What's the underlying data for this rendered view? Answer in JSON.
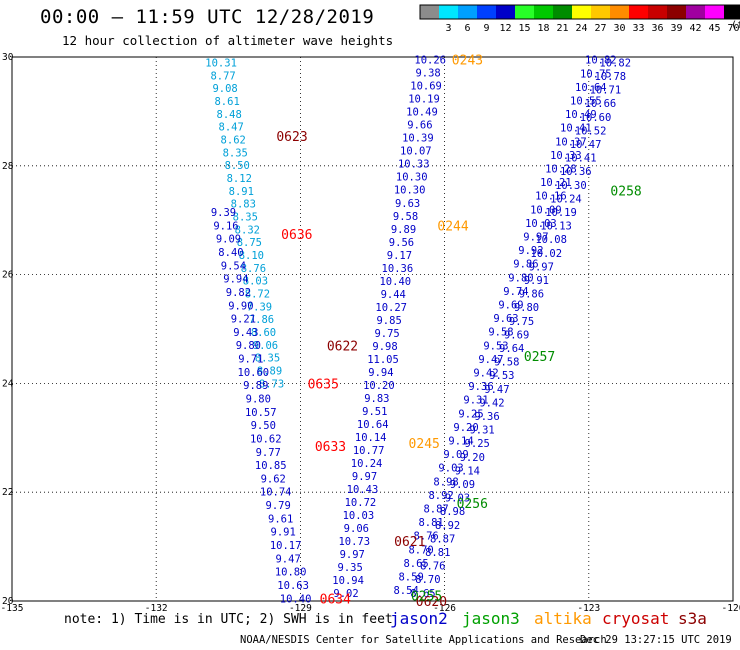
{
  "header": {
    "title": "00:00 – 11:59 UTC 12/28/2019",
    "subtitle": "12 hour collection of altimeter wave heights"
  },
  "color_scale": {
    "unit": "(ft)",
    "swatches": [
      {
        "label": "",
        "color": "#8c8c8c"
      },
      {
        "label": "3",
        "color": "#00e6ff"
      },
      {
        "label": "6",
        "color": "#00a0ff"
      },
      {
        "label": "9",
        "color": "#0040ff"
      },
      {
        "label": "12",
        "color": "#0000c8"
      },
      {
        "label": "15",
        "color": "#28ff28"
      },
      {
        "label": "18",
        "color": "#00c800"
      },
      {
        "label": "21",
        "color": "#008c00"
      },
      {
        "label": "24",
        "color": "#ffff00"
      },
      {
        "label": "27",
        "color": "#ffc800"
      },
      {
        "label": "30",
        "color": "#ff8c00"
      },
      {
        "label": "33",
        "color": "#ff0000"
      },
      {
        "label": "36",
        "color": "#c80000"
      },
      {
        "label": "39",
        "color": "#8c0000"
      },
      {
        "label": "42",
        "color": "#a000a0"
      },
      {
        "label": "45",
        "color": "#ff00ff"
      },
      {
        "label": "70",
        "color": "#000000"
      }
    ]
  },
  "footer": {
    "note": "note: 1) Time is in UTC; 2) SWH is in feet",
    "legend": [
      {
        "name": "jason2",
        "color": "#0000c8"
      },
      {
        "name": "jason3",
        "color": "#00a000"
      },
      {
        "name": "altika",
        "color": "#ff9900"
      },
      {
        "name": "cryosat",
        "color": "#cc0000"
      },
      {
        "name": "s3a",
        "color": "#8c0000"
      }
    ],
    "credit": "NOAA/NESDIS Center for Satellite Applications and Research",
    "timestamp": "Dec 29 13:27:15 UTC 2019"
  },
  "chart_data": {
    "type": "scatter",
    "x_ticks": [
      "-135",
      "-132",
      "-129",
      "-126",
      "-123",
      "-120"
    ],
    "y_ticks": [
      "20",
      "22",
      "24",
      "26",
      "28",
      "30"
    ],
    "xlim": [
      -135,
      -120
    ],
    "ylim": [
      20,
      30
    ],
    "grid": true,
    "time_labels": [
      {
        "text": "0243",
        "lon": -125.85,
        "lat": 29.95,
        "color": "#ff9900"
      },
      {
        "text": "0244",
        "lon": -126.15,
        "lat": 26.9,
        "color": "#ff9900"
      },
      {
        "text": "0245",
        "lon": -126.75,
        "lat": 22.9,
        "color": "#ff9900"
      },
      {
        "text": "0623",
        "lon": -129.5,
        "lat": 28.55,
        "color": "#8c0000"
      },
      {
        "text": "0622",
        "lon": -128.45,
        "lat": 24.7,
        "color": "#8c0000"
      },
      {
        "text": "0621",
        "lon": -127.05,
        "lat": 21.1,
        "color": "#8c0000"
      },
      {
        "text": "0620",
        "lon": -126.6,
        "lat": 20.0,
        "color": "#8c0000"
      },
      {
        "text": "0636",
        "lon": -129.4,
        "lat": 26.75,
        "color": "#ff0000"
      },
      {
        "text": "0635",
        "lon": -128.85,
        "lat": 24.0,
        "color": "#ff0000"
      },
      {
        "text": "0634",
        "lon": -128.6,
        "lat": 20.05,
        "color": "#ff0000"
      },
      {
        "text": "0633",
        "lon": -128.7,
        "lat": 22.85,
        "color": "#ff0000"
      },
      {
        "text": "0258",
        "lon": -122.55,
        "lat": 27.55,
        "color": "#008c00"
      },
      {
        "text": "0257",
        "lon": -124.35,
        "lat": 24.5,
        "color": "#008c00"
      },
      {
        "text": "0256",
        "lon": -125.75,
        "lat": 21.8,
        "color": "#008c00"
      },
      {
        "text": "0255",
        "lon": -126.7,
        "lat": 20.1,
        "color": "#008c00"
      }
    ],
    "tracks": [
      {
        "name": "altika-pass-1",
        "color": "#0000c8",
        "lon_start": -126.3,
        "lat_start": 29.95,
        "lon_end": -128.05,
        "lat_end": 20.15,
        "values": [
          "10.26",
          "9.38",
          "10.69",
          "10.19",
          "10.49",
          "9.66",
          "10.39",
          "10.07",
          "10.33",
          "10.30",
          "10.30",
          "9.63",
          "9.58",
          "9.89",
          "9.56",
          "9.17",
          "10.36",
          "10.40",
          "9.44",
          "10.27",
          "9.85",
          "9.75",
          "9.98",
          "11.05",
          "9.94",
          "10.20",
          "9.83",
          "9.51",
          "10.64",
          "10.14",
          "10.77",
          "10.24",
          "9.97",
          "10.43",
          "10.72",
          "10.03",
          "9.06",
          "10.73",
          "9.97",
          "9.35",
          "10.94",
          "9.02"
        ]
      },
      {
        "name": "cryosat-pass-1",
        "color": "#00a0d8",
        "lon_start": -130.65,
        "lat_start": 29.9,
        "lon_end": -129.6,
        "lat_end": 24.0,
        "values": [
          "10.31",
          "8.77",
          "9.08",
          "8.61",
          "8.48",
          "8.47",
          "8.62",
          "8.35",
          "8.50",
          "8.12",
          "8.91",
          "8.83",
          "8.35",
          "8.32",
          "8.75",
          "8.10",
          "8.76",
          "8.03",
          "8.72",
          "7.39",
          "7.86",
          "8.60",
          "9.06",
          "8.35",
          "8.89",
          "8.73"
        ]
      },
      {
        "name": "cryosat-pass-2",
        "color": "#0000c8",
        "lon_start": -130.6,
        "lat_start": 27.15,
        "lon_end": -129.1,
        "lat_end": 20.05,
        "values": [
          "9.39",
          "9.16",
          "9.09",
          "8.40",
          "9.54",
          "9.94",
          "9.82",
          "9.90",
          "9.21",
          "9.43",
          "9.80",
          "9.71",
          "10.60",
          "9.89",
          "9.80",
          "10.57",
          "9.50",
          "10.62",
          "9.77",
          "10.85",
          "9.62",
          "10.74",
          "9.79",
          "9.61",
          "9.91",
          "10.17",
          "9.47",
          "10.80",
          "10.63",
          "10.40"
        ]
      },
      {
        "name": "jason2-pass-1",
        "color": "#0000c8",
        "lon_start": -122.75,
        "lat_start": 29.95,
        "lon_end": -126.8,
        "lat_end": 20.2,
        "values": [
          "10.82",
          "10.75",
          "10.64",
          "10.55",
          "10.49",
          "10.41",
          "10.37",
          "10.33",
          "10.28",
          "10.21",
          "10.16",
          "10.09",
          "10.03",
          "9.97",
          "9.92",
          "9.86",
          "9.80",
          "9.74",
          "9.69",
          "9.63",
          "9.58",
          "9.53",
          "9.47",
          "9.42",
          "9.36",
          "9.31",
          "9.25",
          "9.20",
          "9.14",
          "9.09",
          "9.03",
          "8.98",
          "8.92",
          "8.87",
          "8.81",
          "8.76",
          "8.70",
          "8.65",
          "8.59",
          "8.54"
        ]
      },
      {
        "name": "jason3-pass-1",
        "color": "#0000c8",
        "lon_start": -122.45,
        "lat_start": 29.9,
        "lon_end": -126.45,
        "lat_end": 20.15,
        "values": [
          "10.82",
          "10.78",
          "10.71",
          "10.66",
          "10.60",
          "10.52",
          "10.47",
          "10.41",
          "10.36",
          "10.30",
          "10.24",
          "10.19",
          "10.13",
          "10.08",
          "10.02",
          "9.97",
          "9.91",
          "9.86",
          "9.80",
          "9.75",
          "9.69",
          "9.64",
          "9.58",
          "9.53",
          "9.47",
          "9.42",
          "9.36",
          "9.31",
          "9.25",
          "9.20",
          "9.14",
          "9.09",
          "9.03",
          "8.98",
          "8.92",
          "8.87",
          "8.81",
          "8.76",
          "8.70",
          "8.65"
        ]
      }
    ]
  }
}
